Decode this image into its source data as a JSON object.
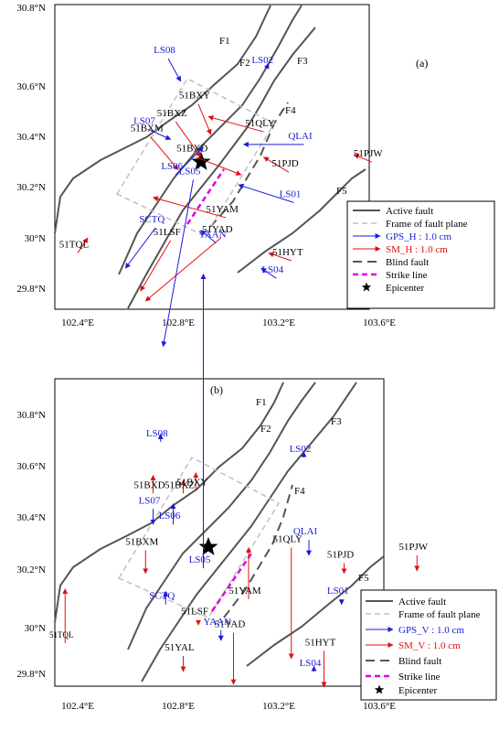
{
  "colors": {
    "gps": "#1a1adb",
    "sm": "#e01010",
    "fault": "#555555",
    "frame": "#c0c0c0",
    "strike": "#e000e0",
    "ink": "#000000"
  },
  "legend": {
    "active_fault": "Active fault",
    "frame": "Frame of fault plane",
    "blind": "Blind fault",
    "strike": "Strike  line",
    "epicenter": "Epicenter"
  },
  "panels": [
    {
      "label": "(a)",
      "legend_gps": "GPS_H : 1.0 cm",
      "legend_sm": "SM_H : 1.0 cm",
      "x_ticks": [
        "102.4°E",
        "102.8°E",
        "103.2°E",
        "103.6°E"
      ],
      "y_ticks": [
        "30.8°N",
        "30.6°N",
        "30.4°N",
        "30.2°N",
        "30°N",
        "29.8°N"
      ],
      "faults": [
        "F1",
        "F2",
        "F3",
        "F4",
        "F5"
      ],
      "gps": [
        {
          "name": "LS08",
          "lon": 102.76,
          "lat": 30.71,
          "dx": 0.05,
          "dy": -0.09
        },
        {
          "name": "LS02",
          "lon": 103.15,
          "lat": 30.67,
          "dx": 0.01,
          "dy": 0.02
        },
        {
          "name": "LS07",
          "lon": 102.68,
          "lat": 30.43,
          "dx": 0.09,
          "dy": -0.04
        },
        {
          "name": "QLAI",
          "lon": 103.3,
          "lat": 30.37,
          "dx": -0.24,
          "dy": 0.0
        },
        {
          "name": "LS06",
          "lon": 102.79,
          "lat": 30.25,
          "dx": 0.11,
          "dy": 0.11
        },
        {
          "name": "LS01",
          "lon": 103.26,
          "lat": 30.14,
          "dx": -0.22,
          "dy": 0.07
        },
        {
          "name": "LS05",
          "lon": 102.86,
          "lat": 30.23,
          "dx": -0.12,
          "dy": -0.66
        },
        {
          "name": "SCTQ",
          "lon": 102.71,
          "lat": 30.04,
          "dx": -0.12,
          "dy": -0.16
        },
        {
          "name": "YAAN",
          "lon": 102.95,
          "lat": 29.98,
          "dx": -0.06,
          "dy": 0.05
        },
        {
          "name": "LS04",
          "lon": 103.19,
          "lat": 29.84,
          "dx": -0.06,
          "dy": 0.04
        }
      ],
      "sm": [
        {
          "name": "51BXY",
          "lon": 102.88,
          "lat": 30.53,
          "dx": 0.05,
          "dy": -0.12
        },
        {
          "name": "51BXZ",
          "lon": 102.79,
          "lat": 30.46,
          "dx": 0.1,
          "dy": -0.14
        },
        {
          "name": "51QLY",
          "lon": 103.14,
          "lat": 30.42,
          "dx": -0.22,
          "dy": 0.06
        },
        {
          "name": "51BXM",
          "lon": 102.69,
          "lat": 30.4,
          "dx": 0.11,
          "dy": -0.13
        },
        {
          "name": "51BXD",
          "lon": 102.87,
          "lat": 30.32,
          "dx": 0.18,
          "dy": -0.07
        },
        {
          "name": "51PJD",
          "lon": 103.24,
          "lat": 30.26,
          "dx": -0.1,
          "dy": 0.06
        },
        {
          "name": "51PJW",
          "lon": 103.57,
          "lat": 30.3,
          "dx": -0.07,
          "dy": 0.03
        },
        {
          "name": "51YAM",
          "lon": 102.99,
          "lat": 30.08,
          "dx": -0.29,
          "dy": 0.08
        },
        {
          "name": "51LSF",
          "lon": 102.77,
          "lat": 29.99,
          "dx": -0.12,
          "dy": -0.2
        },
        {
          "name": "51YAD",
          "lon": 102.97,
          "lat": 30.0,
          "dx": -0.3,
          "dy": -0.25
        },
        {
          "name": "51HYT",
          "lon": 103.25,
          "lat": 29.91,
          "dx": -0.09,
          "dy": 0.03
        },
        {
          "name": "51TQL",
          "lon": 102.4,
          "lat": 29.94,
          "dx": 0.04,
          "dy": 0.06
        }
      ]
    },
    {
      "label": "(b)",
      "legend_gps": "GPS_V : 1.0 cm",
      "legend_sm": "SM_V : 1.0 cm",
      "x_ticks": [
        "102.4°E",
        "102.8°E",
        "103.2°E",
        "103.6°E"
      ],
      "y_ticks": [
        "30.8°N",
        "30.6°N",
        "30.4°N",
        "30.2°N",
        "30°N",
        "29.8°N"
      ],
      "faults": [
        "F1",
        "F2",
        "F3",
        "F4",
        "F5"
      ],
      "gps": [
        {
          "name": "LS08",
          "lon": 102.73,
          "lat": 30.72,
          "dx": 0,
          "dy": 0.03
        },
        {
          "name": "LS02",
          "lon": 103.3,
          "lat": 30.66,
          "dx": 0,
          "dy": 0.02
        },
        {
          "name": "LS07",
          "lon": 102.7,
          "lat": 30.46,
          "dx": 0,
          "dy": -0.06
        },
        {
          "name": "QLAI",
          "lon": 103.32,
          "lat": 30.34,
          "dx": 0,
          "dy": -0.06
        },
        {
          "name": "LS06",
          "lon": 102.78,
          "lat": 30.4,
          "dx": 0,
          "dy": 0.08
        },
        {
          "name": "LS01",
          "lon": 103.45,
          "lat": 30.11,
          "dx": 0,
          "dy": -0.02
        },
        {
          "name": "LS05",
          "lon": 102.9,
          "lat": 30.23,
          "dx": 0,
          "dy": 1.14
        },
        {
          "name": "SCTQ",
          "lon": 102.75,
          "lat": 30.09,
          "dx": 0,
          "dy": 0.05
        },
        {
          "name": "YAAN",
          "lon": 102.97,
          "lat": 29.99,
          "dx": 0,
          "dy": -0.04
        },
        {
          "name": "LS04",
          "lon": 103.34,
          "lat": 29.83,
          "dx": 0,
          "dy": 0.02
        }
      ],
      "sm": [
        {
          "name": "51BXY",
          "lon": 102.87,
          "lat": 30.53,
          "dx": 0,
          "dy": 0.07
        },
        {
          "name": "51BXD",
          "lon": 102.7,
          "lat": 30.52,
          "dx": 0,
          "dy": 0.07
        },
        {
          "name": "51BXZ",
          "lon": 102.82,
          "lat": 30.52,
          "dx": 0,
          "dy": 0.05
        },
        {
          "name": "51BXM",
          "lon": 102.67,
          "lat": 30.3,
          "dx": 0,
          "dy": -0.09
        },
        {
          "name": "51QLY",
          "lon": 103.25,
          "lat": 30.31,
          "dx": 0,
          "dy": -0.43
        },
        {
          "name": "51PJD",
          "lon": 103.46,
          "lat": 30.25,
          "dx": 0,
          "dy": -0.04
        },
        {
          "name": "51PJW",
          "lon": 103.75,
          "lat": 30.28,
          "dx": 0,
          "dy": -0.06
        },
        {
          "name": "51YAM",
          "lon": 103.08,
          "lat": 30.11,
          "dx": 0,
          "dy": 0.2
        },
        {
          "name": "51LSF",
          "lon": 102.88,
          "lat": 30.03,
          "dx": 0,
          "dy": -0.02
        },
        {
          "name": "51YAD",
          "lon": 103.02,
          "lat": 29.98,
          "dx": 0,
          "dy": -0.2
        },
        {
          "name": "51HYT",
          "lon": 103.38,
          "lat": 29.91,
          "dx": 0,
          "dy": -0.14
        },
        {
          "name": "51YAL",
          "lon": 102.82,
          "lat": 29.89,
          "dx": 0,
          "dy": -0.06
        },
        {
          "name": "51TQL",
          "lon": 102.35,
          "lat": 29.94,
          "dx": 0,
          "dy": 0.21
        }
      ]
    }
  ]
}
